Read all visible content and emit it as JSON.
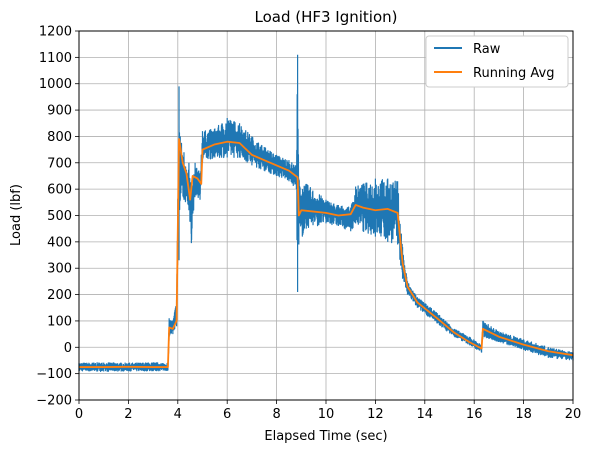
{
  "chart_data": {
    "type": "line",
    "title": "Load (HF3 Ignition)",
    "xlabel": "Elapsed Time (sec)",
    "ylabel": "Load (lbf)",
    "xlim": [
      0,
      20
    ],
    "ylim": [
      -200,
      1200
    ],
    "xticks": [
      0,
      2,
      4,
      6,
      8,
      10,
      12,
      14,
      16,
      18,
      20
    ],
    "yticks": [
      -200,
      -100,
      0,
      100,
      200,
      300,
      400,
      500,
      600,
      700,
      800,
      900,
      1000,
      1100,
      1200
    ],
    "grid": true,
    "legend_position": "top-right",
    "series": [
      {
        "name": "Raw",
        "color": "#1f77b4",
        "envelope": [
          [
            0.0,
            -60,
            -90
          ],
          [
            1.0,
            -58,
            -92
          ],
          [
            2.0,
            -60,
            -90
          ],
          [
            3.0,
            -58,
            -90
          ],
          [
            3.6,
            -60,
            -88
          ],
          [
            3.65,
            110,
            40
          ],
          [
            3.8,
            100,
            50
          ],
          [
            3.95,
            180,
            80
          ],
          [
            4.05,
            990,
            330
          ],
          [
            4.1,
            800,
            560
          ],
          [
            4.25,
            740,
            560
          ],
          [
            4.45,
            700,
            520
          ],
          [
            4.55,
            600,
            395
          ],
          [
            4.7,
            700,
            580
          ],
          [
            4.9,
            660,
            560
          ],
          [
            5.0,
            820,
            700
          ],
          [
            5.5,
            830,
            720
          ],
          [
            6.0,
            870,
            720
          ],
          [
            6.5,
            850,
            720
          ],
          [
            7.0,
            800,
            690
          ],
          [
            7.5,
            760,
            670
          ],
          [
            8.0,
            730,
            650
          ],
          [
            8.5,
            710,
            630
          ],
          [
            8.8,
            690,
            600
          ],
          [
            8.85,
            1110,
            210
          ],
          [
            8.9,
            640,
            390
          ],
          [
            9.2,
            620,
            450
          ],
          [
            10.0,
            560,
            470
          ],
          [
            10.5,
            540,
            460
          ],
          [
            11.0,
            530,
            440
          ],
          [
            11.2,
            610,
            470
          ],
          [
            11.5,
            620,
            440
          ],
          [
            12.0,
            640,
            420
          ],
          [
            12.5,
            640,
            400
          ],
          [
            12.9,
            630,
            390
          ],
          [
            13.1,
            380,
            260
          ],
          [
            13.3,
            250,
            200
          ],
          [
            13.7,
            190,
            150
          ],
          [
            14.5,
            130,
            90
          ],
          [
            15.2,
            70,
            40
          ],
          [
            15.8,
            40,
            10
          ],
          [
            16.3,
            10,
            -20
          ],
          [
            16.35,
            100,
            40
          ],
          [
            17.0,
            60,
            20
          ],
          [
            18.0,
            30,
            -10
          ],
          [
            19.0,
            0,
            -40
          ],
          [
            20.0,
            -20,
            -50
          ]
        ]
      },
      {
        "name": "Running Avg",
        "color": "#ff7f0e",
        "points": [
          [
            0.0,
            -75
          ],
          [
            1.0,
            -75
          ],
          [
            2.0,
            -74
          ],
          [
            3.0,
            -75
          ],
          [
            3.6,
            -75
          ],
          [
            3.65,
            75
          ],
          [
            3.8,
            70
          ],
          [
            3.95,
            100
          ],
          [
            4.05,
            790
          ],
          [
            4.2,
            700
          ],
          [
            4.35,
            660
          ],
          [
            4.5,
            560
          ],
          [
            4.6,
            650
          ],
          [
            4.8,
            640
          ],
          [
            4.95,
            620
          ],
          [
            5.0,
            750
          ],
          [
            5.5,
            770
          ],
          [
            6.0,
            780
          ],
          [
            6.5,
            775
          ],
          [
            7.0,
            730
          ],
          [
            7.5,
            710
          ],
          [
            8.0,
            690
          ],
          [
            8.5,
            670
          ],
          [
            8.85,
            645
          ],
          [
            8.9,
            500
          ],
          [
            9.0,
            520
          ],
          [
            9.5,
            515
          ],
          [
            10.0,
            510
          ],
          [
            10.5,
            500
          ],
          [
            11.0,
            505
          ],
          [
            11.2,
            540
          ],
          [
            11.5,
            530
          ],
          [
            12.0,
            520
          ],
          [
            12.5,
            525
          ],
          [
            12.9,
            510
          ],
          [
            13.1,
            320
          ],
          [
            13.3,
            230
          ],
          [
            13.7,
            170
          ],
          [
            14.5,
            110
          ],
          [
            15.2,
            55
          ],
          [
            15.8,
            20
          ],
          [
            16.3,
            -5
          ],
          [
            16.35,
            70
          ],
          [
            17.0,
            40
          ],
          [
            18.0,
            10
          ],
          [
            19.0,
            -15
          ],
          [
            20.0,
            -30
          ]
        ]
      }
    ]
  }
}
